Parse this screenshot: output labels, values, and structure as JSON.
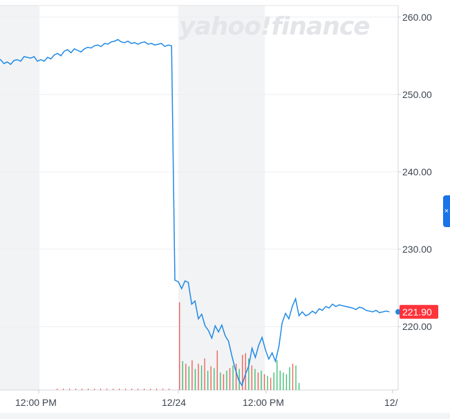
{
  "watermark": {
    "text": "yahoo!finance"
  },
  "side_tab": {
    "icon": "close-icon",
    "glyph": "×"
  },
  "price_badge": {
    "text": "221.90",
    "color": "#ff333a"
  },
  "colors": {
    "line": "#1e88e5",
    "volume_up": "#3fbf73",
    "volume_down": "#f0615a",
    "shade": "#f2f3f4",
    "grid": "#eceef0",
    "axis_text": "#3d4550"
  },
  "chart_data": {
    "type": "line",
    "title": "",
    "xlabel": "",
    "ylabel": "",
    "ylim": [
      211.8,
      261.5
    ],
    "y_ticks": [
      220,
      230,
      240,
      250,
      260
    ],
    "y_tick_labels": [
      "220.00",
      "230.00",
      "240.00",
      "250.00",
      "260.00"
    ],
    "x_tick_labels": [
      "12:00 PM",
      "12/24",
      "12:00 PM",
      "12/"
    ],
    "grid": true,
    "last_price": 221.9,
    "series": [
      {
        "values": [
          254.6,
          254.5,
          254.0,
          254.2,
          253.9,
          254.4,
          254.5,
          254.3,
          254.9,
          254.8,
          254.7,
          254.9,
          254.3,
          254.5,
          254.3,
          254.8,
          254.6,
          255.1,
          255.3,
          255.0,
          255.6,
          255.8,
          255.4,
          255.9,
          255.7,
          255.5,
          255.9,
          256.1,
          256.0,
          256.3,
          256.4,
          256.2,
          256.6,
          256.5,
          256.8,
          256.9,
          257.1,
          256.8,
          256.7,
          256.9,
          256.6,
          256.7,
          256.5,
          256.7,
          256.8,
          256.5,
          256.6,
          256.4,
          256.5,
          256.6,
          256.2,
          256.4,
          256.3,
          226.0,
          225.8,
          224.9,
          225.9,
          225.7,
          222.9,
          223.3,
          221.0,
          221.6,
          220.1,
          219.5,
          218.5,
          220.1,
          219.3,
          220.2,
          218.8,
          218.1,
          216.2,
          214.5,
          213.1,
          212.4,
          213.8,
          214.9,
          217.2,
          216.0,
          217.6,
          218.6,
          217.0,
          215.8,
          216.6,
          215.5,
          217.4,
          220.5,
          221.7,
          221.0,
          222.6,
          223.6,
          221.4,
          221.9,
          221.4,
          221.6,
          222.0,
          221.7,
          222.3,
          222.1,
          222.6,
          222.4,
          222.9,
          222.6,
          222.8,
          222.7,
          222.6,
          222.5,
          222.4,
          222.2,
          222.5,
          222.4,
          222.1,
          222.0,
          221.9,
          222.1,
          221.8,
          221.9,
          222.0,
          221.9
        ]
      }
    ],
    "volume": [
      {
        "dir": "down",
        "rel": 1.0
      },
      {
        "dir": "up",
        "rel": 0.33
      },
      {
        "dir": "down",
        "rel": 0.3
      },
      {
        "dir": "up",
        "rel": 0.27
      },
      {
        "dir": "down",
        "rel": 0.34
      },
      {
        "dir": "up",
        "rel": 0.24
      },
      {
        "dir": "down",
        "rel": 0.3
      },
      {
        "dir": "up",
        "rel": 0.28
      },
      {
        "dir": "down",
        "rel": 0.36
      },
      {
        "dir": "up",
        "rel": 0.22
      },
      {
        "dir": "down",
        "rel": 0.27
      },
      {
        "dir": "up",
        "rel": 0.25
      },
      {
        "dir": "down",
        "rel": 0.45
      },
      {
        "dir": "up",
        "rel": 0.2
      },
      {
        "dir": "down",
        "rel": 0.18
      },
      {
        "dir": "up",
        "rel": 0.22
      },
      {
        "dir": "down",
        "rel": 0.25
      },
      {
        "dir": "up",
        "rel": 0.28
      },
      {
        "dir": "down",
        "rel": 0.3
      },
      {
        "dir": "up",
        "rel": 0.24
      },
      {
        "dir": "down",
        "rel": 0.4
      },
      {
        "dir": "down",
        "rel": 0.42
      },
      {
        "dir": "up",
        "rel": 0.36
      },
      {
        "dir": "down",
        "rel": 0.28
      },
      {
        "dir": "up",
        "rel": 0.24
      },
      {
        "dir": "down",
        "rel": 0.2
      },
      {
        "dir": "up",
        "rel": 0.22
      },
      {
        "dir": "down",
        "rel": 0.18
      },
      {
        "dir": "up",
        "rel": 0.16
      },
      {
        "dir": "down",
        "rel": 0.14
      },
      {
        "dir": "up",
        "rel": 0.2
      },
      {
        "dir": "up",
        "rel": 0.34
      },
      {
        "dir": "up",
        "rel": 0.22
      },
      {
        "dir": "up",
        "rel": 0.2
      },
      {
        "dir": "up",
        "rel": 0.18
      },
      {
        "dir": "up",
        "rel": 0.26
      },
      {
        "dir": "down",
        "rel": 0.3
      },
      {
        "dir": "up",
        "rel": 0.28
      },
      {
        "dir": "up",
        "rel": 0.08
      }
    ]
  }
}
